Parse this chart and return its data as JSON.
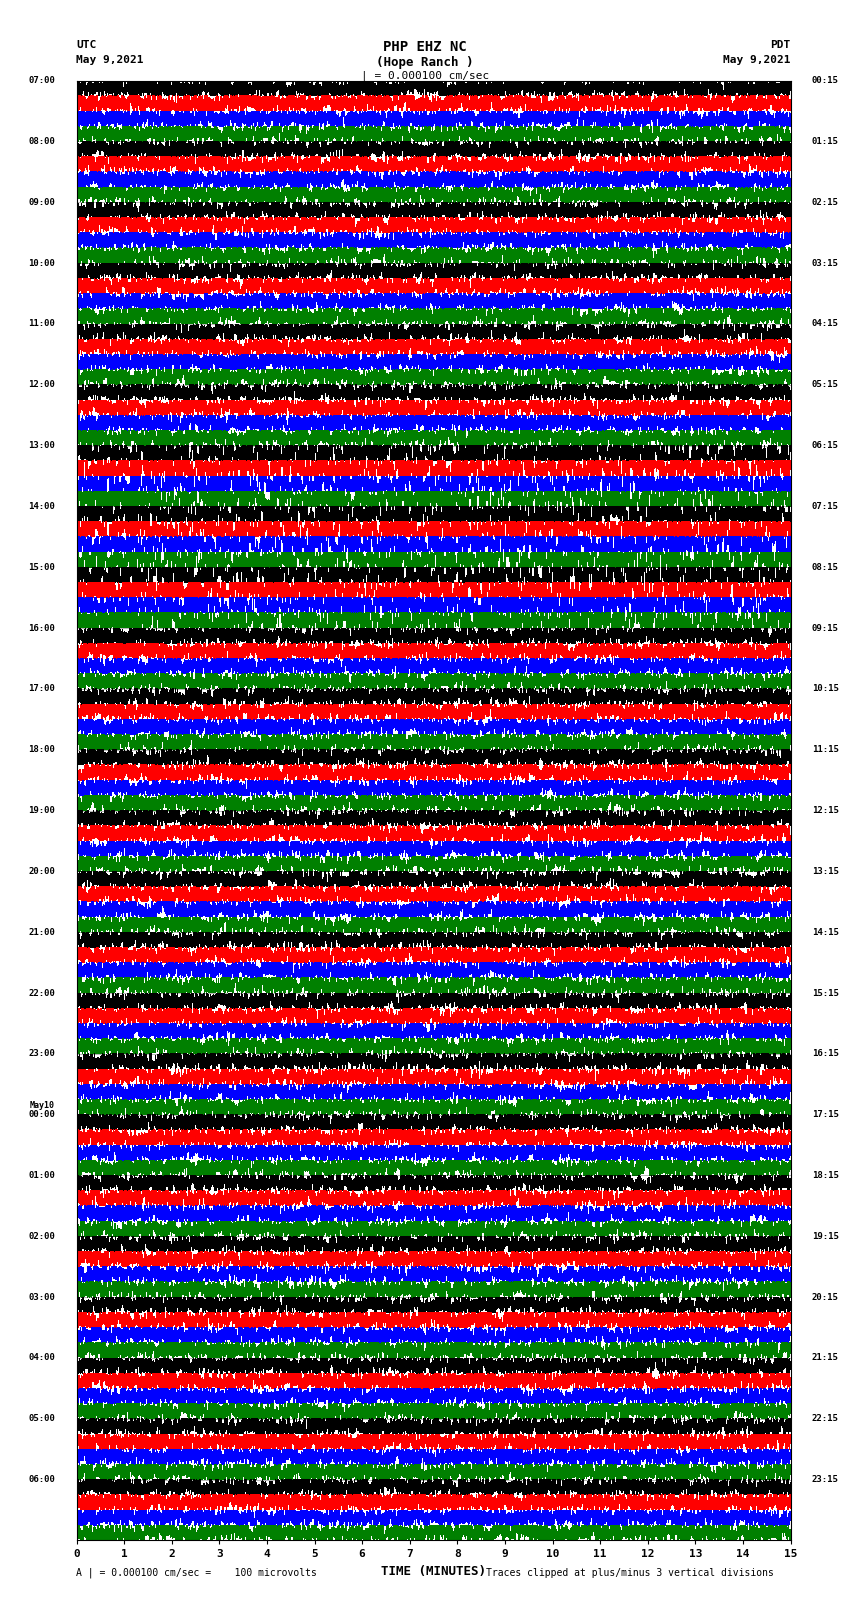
{
  "title_line1": "PHP EHZ NC",
  "title_line2": "(Hope Ranch )",
  "title_line3": "| = 0.000100 cm/sec",
  "xlabel": "TIME (MINUTES)",
  "footer_left": "A | = 0.000100 cm/sec =    100 microvolts",
  "footer_right": "Traces clipped at plus/minus 3 vertical divisions",
  "utc_labels": [
    "07:00",
    "08:00",
    "09:00",
    "10:00",
    "11:00",
    "12:00",
    "13:00",
    "14:00",
    "15:00",
    "16:00",
    "17:00",
    "18:00",
    "19:00",
    "20:00",
    "21:00",
    "22:00",
    "23:00",
    "May10",
    "00:00",
    "01:00",
    "02:00",
    "03:00",
    "04:00",
    "05:00",
    "06:00"
  ],
  "pdt_labels": [
    "00:15",
    "01:15",
    "02:15",
    "03:15",
    "04:15",
    "05:15",
    "06:15",
    "07:15",
    "08:15",
    "09:15",
    "10:15",
    "11:15",
    "12:15",
    "13:15",
    "14:15",
    "15:15",
    "16:15",
    "17:15",
    "18:15",
    "19:15",
    "20:15",
    "21:15",
    "22:15",
    "23:15"
  ],
  "trace_colors": [
    "black",
    "red",
    "blue",
    "green"
  ],
  "bg_color": "white",
  "n_rows": 24,
  "minutes": 15,
  "figsize": [
    8.5,
    16.13
  ],
  "dpi": 100
}
